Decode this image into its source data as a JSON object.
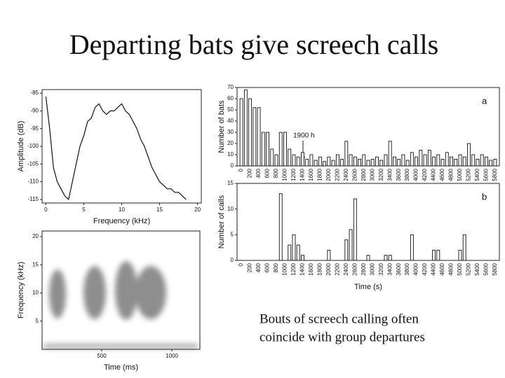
{
  "title": "Departing bats give screech calls",
  "caption": [
    "Bouts of screech calling often",
    "coincide with group departures"
  ],
  "chart_data": [
    {
      "type": "line",
      "xlabel": "Frequency (kHz)",
      "ylabel": "Amplitude (dB)",
      "x": [
        0,
        0.5,
        1,
        1.5,
        2,
        2.5,
        3,
        3.5,
        4,
        4.5,
        5,
        5.5,
        6,
        6.5,
        7,
        7.5,
        8,
        8.5,
        9,
        9.5,
        10,
        10.5,
        11,
        11.5,
        12,
        12.5,
        13,
        13.5,
        14,
        14.5,
        15,
        15.5,
        16,
        16.5,
        17,
        17.5,
        18,
        18.5
      ],
      "values": [
        -86,
        -95,
        -106,
        -110,
        -112,
        -114,
        -115,
        -110,
        -105,
        -100,
        -97,
        -93,
        -92,
        -89,
        -88,
        -90,
        -91,
        -90,
        -90,
        -89,
        -88,
        -90,
        -91,
        -93,
        -95,
        -98,
        -100,
        -103,
        -106,
        -108,
        -110,
        -111,
        -112,
        -112,
        -113,
        -113,
        -114,
        -115
      ],
      "color": "#111111",
      "xlim": [
        -0.5,
        20.5
      ],
      "ylim": [
        -116,
        -84
      ],
      "xticks": [
        0,
        5,
        10,
        15,
        20
      ],
      "yticks": [
        -85,
        -90,
        -95,
        -100,
        -105,
        -110,
        -115
      ]
    },
    {
      "type": "heatmap",
      "xlabel": "Time (ms)",
      "ylabel": "Frequency (kHz)",
      "xlim": [
        75,
        1200
      ],
      "ylim": [
        0,
        21
      ],
      "xticks": [
        500,
        1000
      ],
      "yticks": [
        5,
        10,
        15,
        20
      ]
    },
    {
      "type": "bar",
      "label": "a",
      "ylabel": "Number of bats",
      "annotation": "1900 h",
      "color": "#ffffff",
      "categories": [
        "0",
        null,
        "200",
        null,
        "400",
        null,
        "600",
        null,
        "800",
        null,
        "1000",
        null,
        "1200",
        null,
        "1400",
        null,
        "1600",
        null,
        "1800",
        null,
        "2000",
        null,
        "2200",
        null,
        "2400",
        null,
        "2600",
        null,
        "2800",
        null,
        "3000",
        null,
        "3200",
        null,
        "3400",
        null,
        "3600",
        null,
        "3800",
        null,
        "4000",
        null,
        "4200",
        null,
        "4400",
        null,
        "4600",
        null,
        "4800",
        null,
        "5000",
        null,
        "5200",
        null,
        "5400",
        null,
        "5600",
        null,
        "5800"
      ],
      "values": [
        60,
        68,
        60,
        52,
        52,
        30,
        30,
        15,
        10,
        30,
        30,
        15,
        10,
        8,
        12,
        6,
        10,
        5,
        8,
        4,
        8,
        5,
        10,
        6,
        22,
        10,
        8,
        6,
        10,
        5,
        6,
        8,
        5,
        10,
        22,
        8,
        6,
        10,
        5,
        12,
        8,
        14,
        10,
        14,
        8,
        10,
        6,
        12,
        8,
        6,
        10,
        8,
        20,
        10,
        6,
        10,
        8,
        5,
        6
      ],
      "ylim": [
        0,
        70
      ],
      "yticks": [
        0,
        10,
        20,
        30,
        40,
        50,
        60,
        70
      ]
    },
    {
      "type": "bar",
      "label": "b",
      "ylabel": "Number of calls",
      "xlabel": "Time (s)",
      "color": "#ffffff",
      "categories": [
        "0",
        null,
        "200",
        null,
        "400",
        null,
        "600",
        null,
        "800",
        null,
        "1000",
        null,
        "1200",
        null,
        "1400",
        null,
        "1600",
        null,
        "1800",
        null,
        "2000",
        null,
        "2200",
        null,
        "2400",
        null,
        "2600",
        null,
        "2800",
        null,
        "3000",
        null,
        "3200",
        null,
        "3400",
        null,
        "3600",
        null,
        "3800",
        null,
        "4000",
        null,
        "4200",
        null,
        "4400",
        null,
        "4600",
        null,
        "4800",
        null,
        "5000",
        null,
        "5200",
        null,
        "5400",
        null,
        "5600",
        null,
        "5800"
      ],
      "values": [
        0,
        0,
        0,
        0,
        0,
        0,
        0,
        0,
        0,
        13,
        0,
        3,
        5,
        3,
        1,
        0,
        0,
        0,
        0,
        0,
        2,
        0,
        0,
        0,
        4,
        6,
        12,
        0,
        0,
        1,
        0,
        0,
        0,
        1,
        1,
        0,
        0,
        0,
        0,
        5,
        0,
        0,
        0,
        0,
        2,
        2,
        0,
        0,
        0,
        0,
        2,
        5,
        0,
        0,
        0,
        0,
        0,
        0,
        0
      ],
      "ylim": [
        0,
        15
      ],
      "yticks": [
        0,
        5,
        10,
        15
      ]
    }
  ]
}
